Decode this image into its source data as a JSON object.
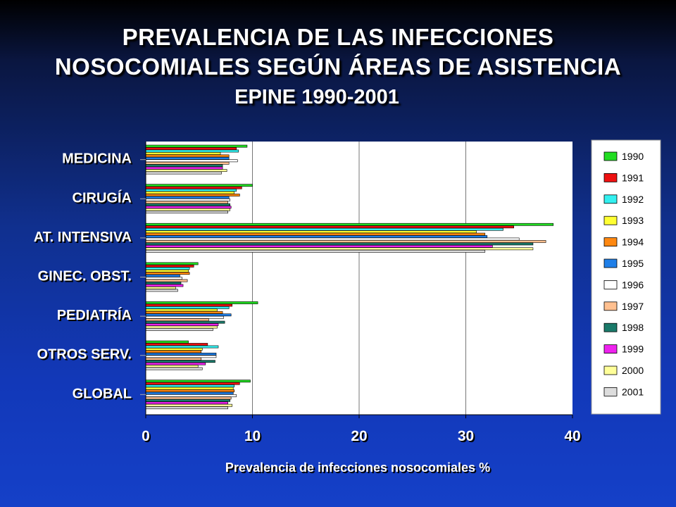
{
  "title_line1": "PREVALENCIA DE LAS INFECCIONES",
  "title_line2": "NOSOCOMIALES SEGÚN ÁREAS DE ASISTENCIA",
  "subtitle": "EPINE 1990-2001",
  "colors": {
    "1990": "#22dd22",
    "1991": "#ee1111",
    "1992": "#33f0f0",
    "1993": "#ffff33",
    "1994": "#ff8811",
    "1995": "#1f7fe8",
    "1996": "#ffffff",
    "1997": "#ffc090",
    "1998": "#1a7a6a",
    "1999": "#ee22ee",
    "2000": "#ffff99",
    "2001": "#dddddd"
  },
  "chart_data": {
    "type": "bar",
    "orientation": "horizontal",
    "title": "PREVALENCIA DE LAS INFECCIONES NOSOCOMIALES SEGÚN ÁREAS DE ASISTENCIA",
    "subtitle": "EPINE 1990-2001",
    "xlabel": "Prevalencia de infecciones nosocomiales %",
    "ylabel": "",
    "xlim": [
      0,
      40
    ],
    "xticks": [
      "0",
      "10",
      "20",
      "30",
      "40"
    ],
    "grid": true,
    "legend_position": "right",
    "categories": [
      "MEDICINA",
      "CIRUGÍA",
      "AT. INTENSIVA",
      "GINEC. OBST.",
      "PEDIATRÍA",
      "OTROS SERV.",
      "GLOBAL"
    ],
    "series": [
      {
        "name": "1990",
        "values": [
          9.5,
          10.0,
          38.2,
          4.9,
          10.5,
          4.0,
          9.8
        ]
      },
      {
        "name": "1991",
        "values": [
          8.5,
          9.0,
          34.5,
          4.5,
          8.1,
          5.8,
          8.8
        ]
      },
      {
        "name": "1992",
        "values": [
          8.7,
          8.5,
          33.5,
          4.1,
          7.8,
          6.8,
          8.3
        ]
      },
      {
        "name": "1993",
        "values": [
          7.0,
          8.3,
          31.0,
          4.0,
          6.7,
          5.3,
          8.2
        ]
      },
      {
        "name": "1994",
        "values": [
          7.8,
          8.8,
          31.8,
          4.1,
          7.2,
          5.2,
          8.3
        ]
      },
      {
        "name": "1995",
        "values": [
          7.8,
          7.8,
          32.0,
          3.2,
          8.0,
          6.6,
          8.2
        ]
      },
      {
        "name": "1996",
        "values": [
          8.6,
          7.9,
          35.0,
          3.4,
          7.3,
          6.6,
          8.5
        ]
      },
      {
        "name": "1997",
        "values": [
          7.8,
          7.7,
          37.5,
          3.9,
          5.9,
          5.2,
          8.0
        ]
      },
      {
        "name": "1998",
        "values": [
          7.2,
          7.9,
          36.3,
          3.3,
          7.4,
          6.5,
          7.9
        ]
      },
      {
        "name": "1999",
        "values": [
          7.2,
          8.0,
          32.5,
          3.5,
          6.8,
          5.6,
          7.7
        ]
      },
      {
        "name": "2000",
        "values": [
          7.6,
          7.9,
          36.3,
          2.8,
          6.7,
          4.9,
          8.1
        ]
      },
      {
        "name": "2001",
        "values": [
          7.1,
          7.7,
          31.8,
          3.0,
          6.3,
          5.3,
          7.7
        ]
      }
    ]
  }
}
